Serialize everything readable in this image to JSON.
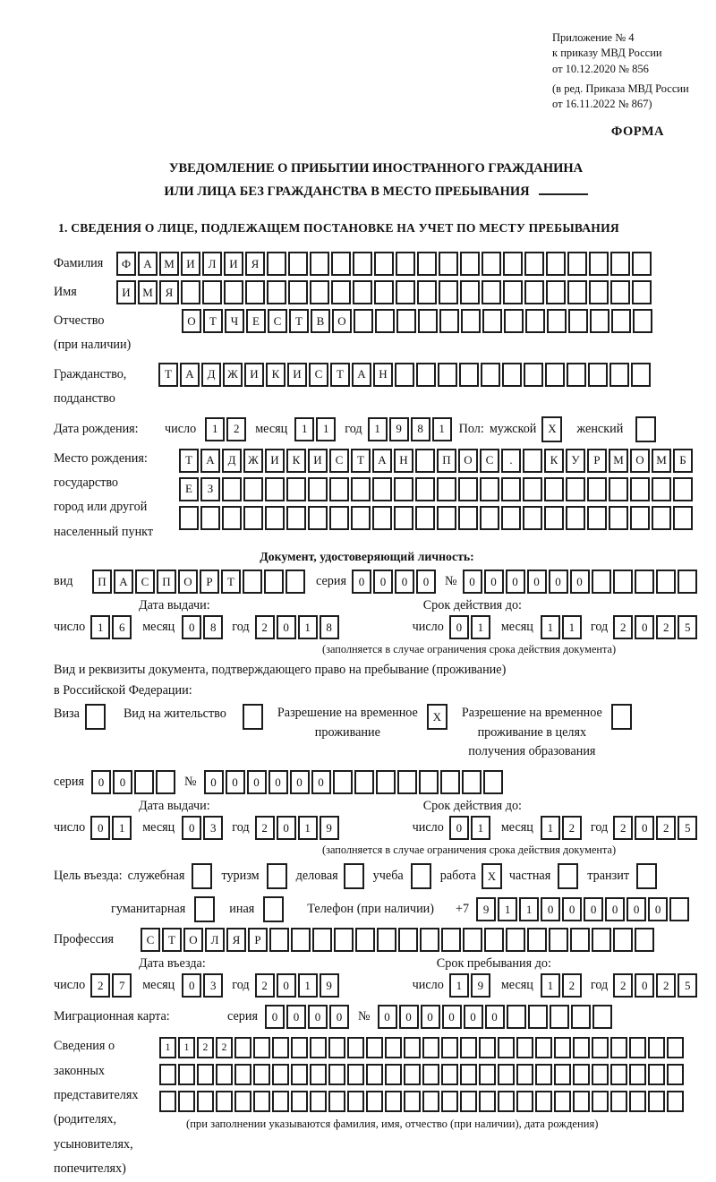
{
  "header": {
    "note_lines": [
      "Приложение № 4",
      "к приказу МВД России",
      "от 10.12.2020 № 856"
    ],
    "note_lines_2": [
      "(в ред. Приказа МВД России",
      "от 16.11.2022 № 867)"
    ],
    "form_label": "ФОРМА"
  },
  "title": {
    "line1": "УВЕДОМЛЕНИЕ О ПРИБЫТИИ ИНОСТРАННОГО ГРАЖДАНИНА",
    "line2": "ИЛИ ЛИЦА БЕЗ ГРАЖДАНСТВА В МЕСТО ПРЕБЫВАНИЯ"
  },
  "section1": {
    "heading": "1. СВЕДЕНИЯ О ЛИЦЕ, ПОДЛЕЖАЩЕМ ПОСТАНОВКЕ НА УЧЕТ ПО МЕСТУ ПРЕБЫВАНИЯ"
  },
  "labels": {
    "surname": "Фамилия",
    "name": "Имя",
    "patronymic": "Отчество",
    "patronymic_note": "(при наличии)",
    "citizenship_1": "Гражданство,",
    "citizenship_2": "подданство",
    "birth_date": "Дата рождения:",
    "day": "число",
    "month": "месяц",
    "year": "год",
    "sex": "Пол:",
    "male": "мужской",
    "female": "женский",
    "birthplace": "Место рождения:",
    "birthplace_state": "государство",
    "birthplace_city_1": "город или другой",
    "birthplace_city_2": "населенный пункт",
    "identity_doc_heading": "Документ, удостоверяющий личность:",
    "kind": "вид",
    "series": "серия",
    "number": "№",
    "issue_date": "Дата выдачи:",
    "valid_until": "Срок действия до:",
    "valid_note": "(заполняется в случае ограничения срока действия документа)",
    "resident_doc_1": "Вид и реквизиты документа, подтверждающего право на пребывание (проживание)",
    "resident_doc_2": "в Российской Федерации:",
    "visa": "Виза",
    "residence_permit": "Вид на жительство",
    "temp_permit_1": "Разрешение на временное",
    "temp_permit_2": "проживание",
    "temp_permit_edu_1": "Разрешение на временное",
    "temp_permit_edu_2": "проживание в целях",
    "temp_permit_edu_3": "получения образования",
    "entry_purpose": "Цель въезда:",
    "purpose_official": "служебная",
    "purpose_tourism": "туризм",
    "purpose_business": "деловая",
    "purpose_study": "учеба",
    "purpose_work": "работа",
    "purpose_private": "частная",
    "purpose_transit": "транзит",
    "purpose_humanitarian": "гуманитарная",
    "purpose_other": "иная",
    "phone": "Телефон (при наличии)",
    "phone_prefix": "+7",
    "profession": "Профессия",
    "entry_date": "Дата въезда:",
    "stay_until": "Срок пребывания до:",
    "migration_card": "Миграционная карта:",
    "representatives_1": "Сведения о",
    "representatives_2": "законных",
    "representatives_3": "представителях",
    "representatives_4": "(родителях,",
    "representatives_5": "усыновителях,",
    "representatives_6": "попечителях)",
    "representatives_note": "(при заполнении указываются фамилия, имя, отчество (при наличии), дата рождения)"
  },
  "cells": {
    "surname": {
      "cells": "ФАМИЛИЯ",
      "total": 25
    },
    "name": {
      "cells": "ИМЯ",
      "total": 25
    },
    "patronymic": {
      "cells": "ОТЧЕСТВО",
      "total": 22
    },
    "citizenship": {
      "cells": "ТАДЖИКИСТАН",
      "total": 23
    },
    "birth_day": {
      "cells": "12",
      "total": 2
    },
    "birth_month": {
      "cells": "11",
      "total": 2
    },
    "birth_year": {
      "cells": "1981",
      "total": 4
    },
    "sex_male": {
      "cells": "X",
      "total": 1
    },
    "sex_female": {
      "cells": "",
      "total": 1
    },
    "birthplace_1": {
      "cells": "ТАДЖИКИСТАН ПОС. КУРМОМБ",
      "total": 24
    },
    "birthplace_2": {
      "cells": "ЕЗ",
      "total": 24
    },
    "birthplace_3": {
      "cells": "",
      "total": 24
    },
    "id_kind": {
      "cells": "ПАСПОРТ",
      "total": 10
    },
    "id_series": {
      "cells": "0000",
      "total": 4
    },
    "id_number": {
      "cells": "000000",
      "total": 11
    },
    "id_issue_day": {
      "cells": "16",
      "total": 2
    },
    "id_issue_month": {
      "cells": "08",
      "total": 2
    },
    "id_issue_year": {
      "cells": "2018",
      "total": 4
    },
    "id_valid_day": {
      "cells": "01",
      "total": 2
    },
    "id_valid_month": {
      "cells": "11",
      "total": 2
    },
    "id_valid_year": {
      "cells": "2025",
      "total": 4
    },
    "visa_check": {
      "cells": "",
      "total": 1
    },
    "residence_check": {
      "cells": "",
      "total": 1
    },
    "temp_permit_check": {
      "cells": "X",
      "total": 1
    },
    "temp_permit_edu_check": {
      "cells": "",
      "total": 1
    },
    "permit_series": {
      "cells": "00",
      "total": 4
    },
    "permit_number": {
      "cells": "000000",
      "total": 14
    },
    "permit_issue_day": {
      "cells": "01",
      "total": 2
    },
    "permit_issue_month": {
      "cells": "03",
      "total": 2
    },
    "permit_issue_year": {
      "cells": "2019",
      "total": 4
    },
    "permit_valid_day": {
      "cells": "01",
      "total": 2
    },
    "permit_valid_month": {
      "cells": "12",
      "total": 2
    },
    "permit_valid_year": {
      "cells": "2025",
      "total": 4
    },
    "purpose_official": {
      "cells": "",
      "total": 1
    },
    "purpose_tourism": {
      "cells": "",
      "total": 1
    },
    "purpose_business": {
      "cells": "",
      "total": 1
    },
    "purpose_study": {
      "cells": "",
      "total": 1
    },
    "purpose_work": {
      "cells": "X",
      "total": 1
    },
    "purpose_private": {
      "cells": "",
      "total": 1
    },
    "purpose_transit": {
      "cells": "",
      "total": 1
    },
    "purpose_humanitarian": {
      "cells": "",
      "total": 1
    },
    "purpose_other": {
      "cells": "",
      "total": 1
    },
    "phone": {
      "cells": "911000000",
      "total": 10
    },
    "profession": {
      "cells": "СТОЛЯР",
      "total": 24
    },
    "entry_day": {
      "cells": "27",
      "total": 2
    },
    "entry_month": {
      "cells": "03",
      "total": 2
    },
    "entry_year": {
      "cells": "2019",
      "total": 4
    },
    "stay_day": {
      "cells": "19",
      "total": 2
    },
    "stay_month": {
      "cells": "12",
      "total": 2
    },
    "stay_year": {
      "cells": "2025",
      "total": 4
    },
    "mig_series": {
      "cells": "0000",
      "total": 4
    },
    "mig_number": {
      "cells": "000000",
      "total": 11
    },
    "rep_row_1": {
      "cells": "1122",
      "total": 28,
      "small": true
    },
    "rep_row_2": {
      "cells": "",
      "total": 28,
      "small": true
    },
    "rep_row_3": {
      "cells": "",
      "total": 28,
      "small": true
    }
  }
}
